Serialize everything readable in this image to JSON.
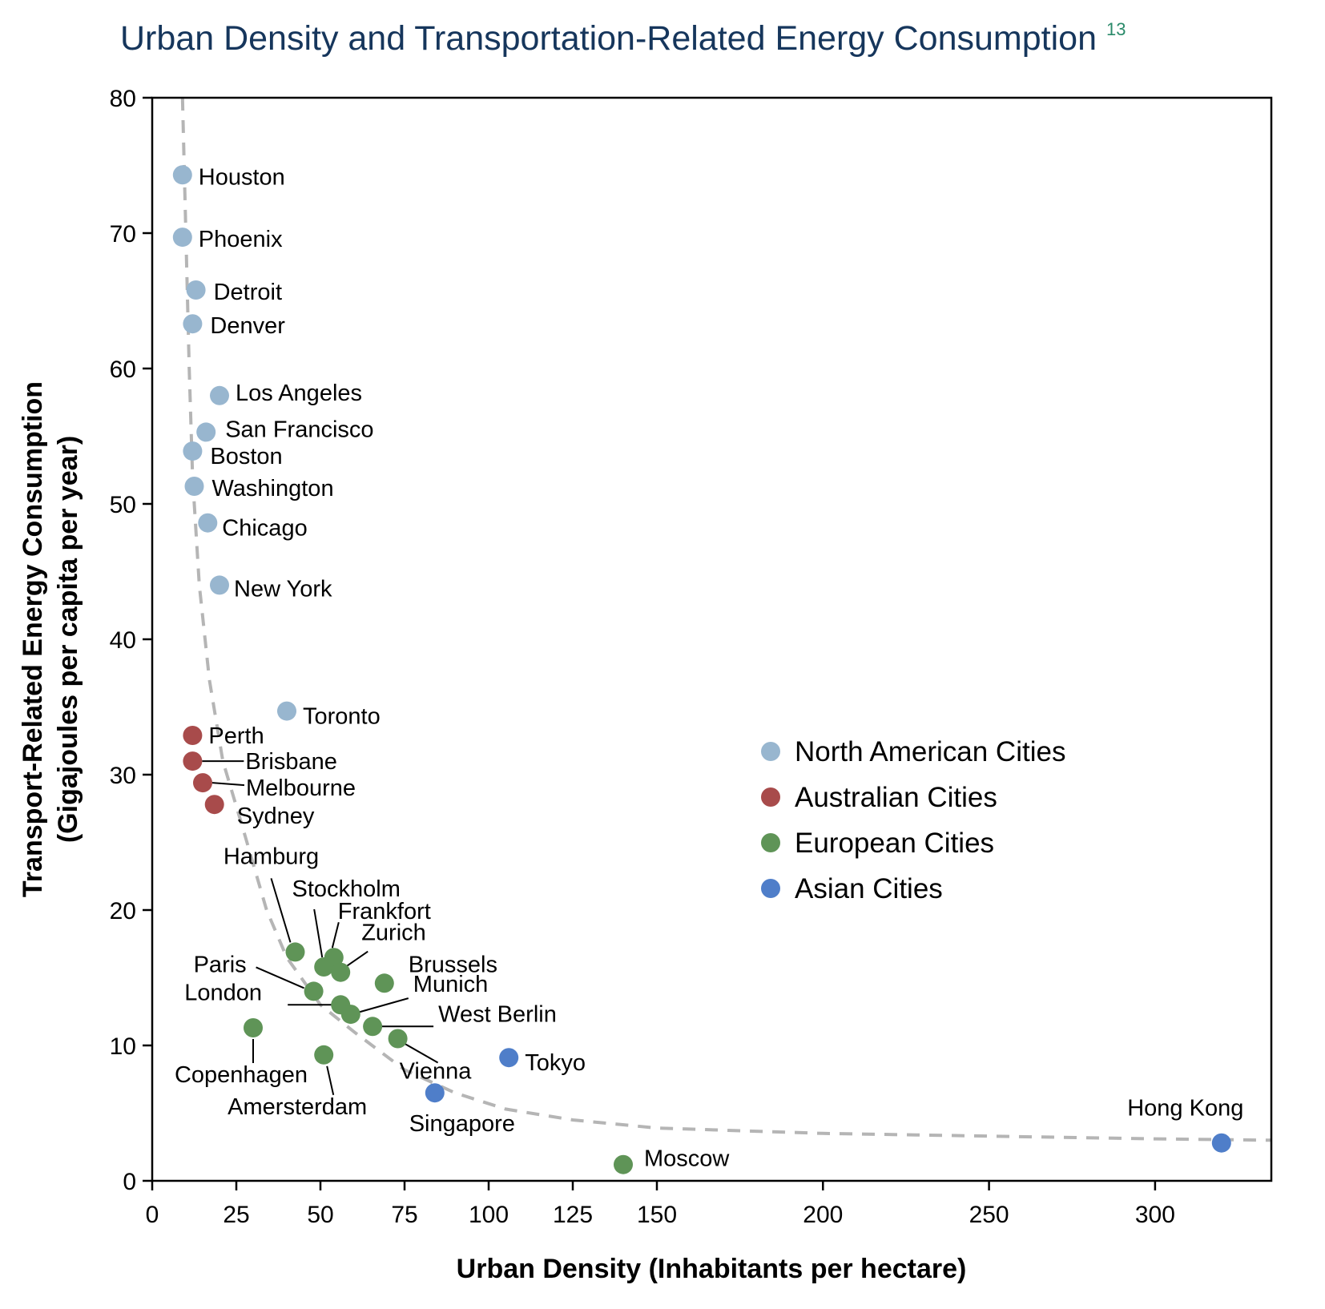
{
  "chart_data": {
    "type": "scatter",
    "title": "Urban Density and Transportation-Related Energy Consumption",
    "title_footnote": "13",
    "xlabel": "Urban Density (Inhabitants per hectare)",
    "ylabel_line1": "Transport-Related Energy Consumption",
    "ylabel_line2": "(Gigajoules per capita per year)",
    "x_segments": [
      {
        "from": 0,
        "to": 150,
        "ticks": [
          0,
          25,
          50,
          75,
          100,
          125,
          150
        ]
      },
      {
        "from": 150,
        "to": 335,
        "ticks": [
          200,
          250,
          300
        ]
      }
    ],
    "xlim": [
      0,
      335
    ],
    "ylim": [
      0,
      80
    ],
    "yticks": [
      0,
      10,
      20,
      30,
      40,
      50,
      60,
      70,
      80
    ],
    "grid": false,
    "legend_position": "right",
    "colors": {
      "North American Cities": "#98b6cf",
      "Australian Cities": "#a84b4b",
      "European Cities": "#5f9457",
      "Asian Cities": "#4f7ec9",
      "trend": "#b5b5b5"
    },
    "series": [
      {
        "name": "North American Cities",
        "points": [
          {
            "label": "Houston",
            "x": 9,
            "y": 74.3
          },
          {
            "label": "Phoenix",
            "x": 9,
            "y": 69.7
          },
          {
            "label": "Detroit",
            "x": 13,
            "y": 65.8
          },
          {
            "label": "Denver",
            "x": 12,
            "y": 63.3
          },
          {
            "label": "Los Angeles",
            "x": 20,
            "y": 58
          },
          {
            "label": "San Francisco",
            "x": 16,
            "y": 55.3
          },
          {
            "label": "Boston",
            "x": 12,
            "y": 53.9
          },
          {
            "label": "Washington",
            "x": 12.5,
            "y": 51.3
          },
          {
            "label": "Chicago",
            "x": 16.5,
            "y": 48.6
          },
          {
            "label": "New York",
            "x": 20,
            "y": 44
          },
          {
            "label": "Toronto",
            "x": 40,
            "y": 34.7
          }
        ]
      },
      {
        "name": "Australian Cities",
        "points": [
          {
            "label": "Perth",
            "x": 12,
            "y": 32.9
          },
          {
            "label": "Brisbane",
            "x": 12,
            "y": 31
          },
          {
            "label": "Melbourne",
            "x": 15,
            "y": 29.4
          },
          {
            "label": "Sydney",
            "x": 18.5,
            "y": 27.8
          }
        ]
      },
      {
        "name": "European Cities",
        "points": [
          {
            "label": "Hamburg",
            "x": 42.5,
            "y": 16.9
          },
          {
            "label": "Stockholm",
            "x": 51,
            "y": 15.8
          },
          {
            "label": "Frankfort",
            "x": 54,
            "y": 16.5
          },
          {
            "label": "Zurich",
            "x": 56,
            "y": 15.4
          },
          {
            "label": "Brussels",
            "x": 69,
            "y": 14.6
          },
          {
            "label": "Paris",
            "x": 48,
            "y": 14
          },
          {
            "label": "London",
            "x": 56,
            "y": 13
          },
          {
            "label": "Munich",
            "x": 59,
            "y": 12.3
          },
          {
            "label": "West Berlin",
            "x": 65.5,
            "y": 11.4
          },
          {
            "label": "Vienna",
            "x": 73,
            "y": 10.5
          },
          {
            "label": "Copenhagen",
            "x": 30,
            "y": 11.3
          },
          {
            "label": "Amersterdam",
            "x": 51,
            "y": 9.3
          },
          {
            "label": "Moscow",
            "x": 140,
            "y": 1.2
          }
        ]
      },
      {
        "name": "Asian Cities",
        "points": [
          {
            "label": "Tokyo",
            "x": 106,
            "y": 9.1
          },
          {
            "label": "Singapore",
            "x": 84,
            "y": 6.5
          },
          {
            "label": "Hong Kong",
            "x": 320,
            "y": 2.8
          }
        ]
      }
    ],
    "trend_line": {
      "style": "dashed",
      "points": [
        [
          9,
          80
        ],
        [
          10,
          70
        ],
        [
          11,
          60
        ],
        [
          12,
          52
        ],
        [
          14,
          44
        ],
        [
          17,
          37
        ],
        [
          21,
          31
        ],
        [
          27,
          26
        ],
        [
          34,
          20
        ],
        [
          40,
          16.5
        ],
        [
          50,
          13
        ],
        [
          60,
          11
        ],
        [
          75,
          8.2
        ],
        [
          90,
          6.5
        ],
        [
          105,
          5.3
        ],
        [
          125,
          4.5
        ],
        [
          150,
          3.9
        ],
        [
          200,
          3.5
        ],
        [
          250,
          3.3
        ],
        [
          300,
          3.1
        ],
        [
          335,
          3
        ]
      ]
    }
  }
}
